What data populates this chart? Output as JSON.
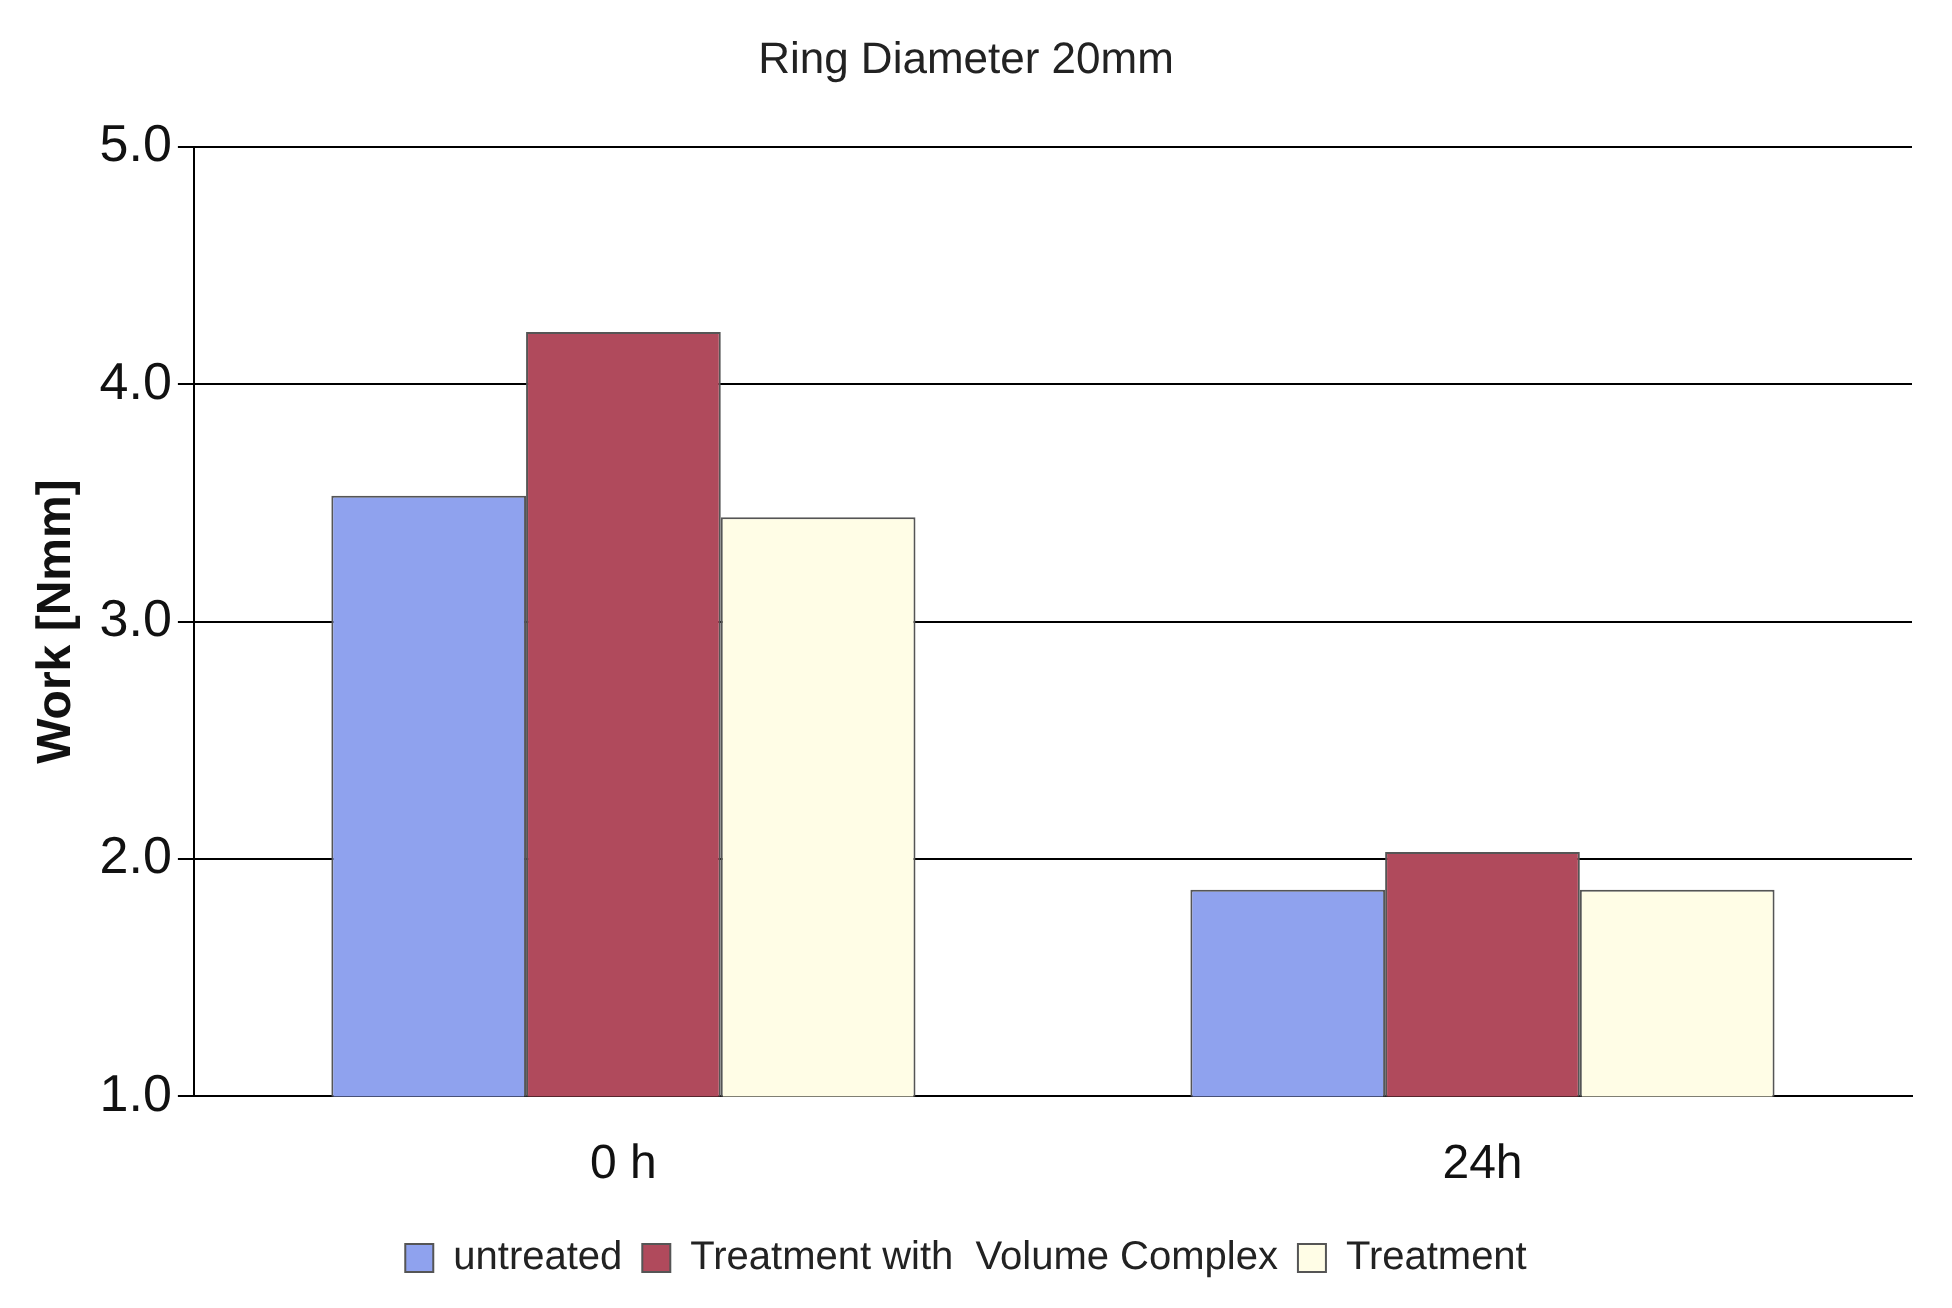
{
  "chart_data": {
    "type": "bar",
    "title": "Ring Diameter 20mm",
    "ylabel": "Work [Nmm]",
    "categories": [
      "0 h",
      "24h"
    ],
    "series": [
      {
        "name": "untreated",
        "color": "#8fa2ee",
        "values": [
          3.53,
          1.87
        ]
      },
      {
        "name": "Treatment with  Volume Complex",
        "color": "#b04a5c",
        "values": [
          4.22,
          2.03
        ]
      },
      {
        "name": "Treatment",
        "color": "#fffde6",
        "values": [
          3.44,
          1.87
        ]
      }
    ],
    "ylim": [
      1,
      5
    ],
    "yticks": [
      {
        "value": 1,
        "label": "1.0"
      },
      {
        "value": 2,
        "label": "2.0"
      },
      {
        "value": 3,
        "label": "3.0"
      },
      {
        "value": 4,
        "label": "4.0"
      },
      {
        "value": 5,
        "label": "5.0"
      }
    ],
    "grid": "y",
    "legend": "bottom"
  }
}
